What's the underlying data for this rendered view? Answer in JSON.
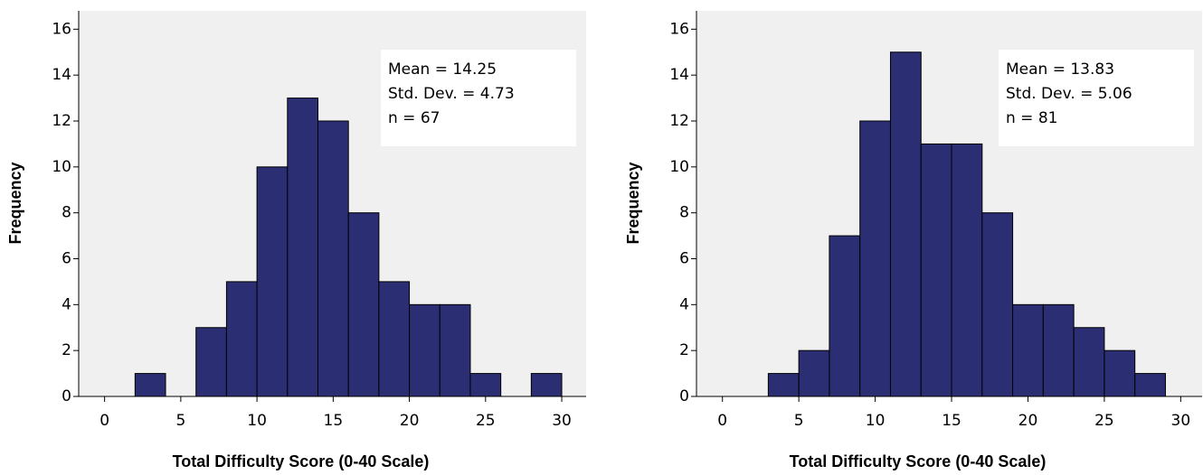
{
  "chart_data": [
    {
      "type": "histogram",
      "bins": [
        2,
        4,
        6,
        8,
        10,
        12,
        14,
        16,
        18,
        20,
        22,
        24,
        26,
        28,
        30
      ],
      "values": [
        1,
        0,
        3,
        5,
        10,
        13,
        12,
        8,
        5,
        4,
        4,
        1,
        0,
        1
      ],
      "color": "#2b2e72",
      "xlim": [
        -1.7,
        31.6
      ],
      "ylim": [
        0,
        16.8
      ],
      "xticks": [
        0,
        5,
        10,
        15,
        20,
        25,
        30
      ],
      "yticks": [
        0,
        2,
        4,
        6,
        8,
        10,
        12,
        14,
        16
      ],
      "x_label": "Total Difficulty Score (0-40 Scale)",
      "y_label": "Frequency",
      "annotations": [
        "Mean = 14.25",
        "Std. Dev. = 4.73",
        "n = 67"
      ]
    },
    {
      "type": "histogram",
      "bins": [
        3,
        5,
        7,
        9,
        11,
        13,
        15,
        17,
        19,
        21,
        23,
        25,
        27,
        29
      ],
      "values": [
        1,
        2,
        7,
        12,
        15,
        11,
        11,
        8,
        4,
        4,
        3,
        2,
        1
      ],
      "color": "#2b2e72",
      "xlim": [
        -1.7,
        31.4
      ],
      "ylim": [
        0,
        16.8
      ],
      "xticks": [
        0,
        5,
        10,
        15,
        20,
        25,
        30
      ],
      "yticks": [
        0,
        2,
        4,
        6,
        8,
        10,
        12,
        14,
        16
      ],
      "x_label": "Total Difficulty Score (0-40 Scale)",
      "y_label": "Frequency",
      "annotations": [
        "Mean = 13.83",
        "Std. Dev. = 5.06",
        "n = 81"
      ]
    }
  ]
}
